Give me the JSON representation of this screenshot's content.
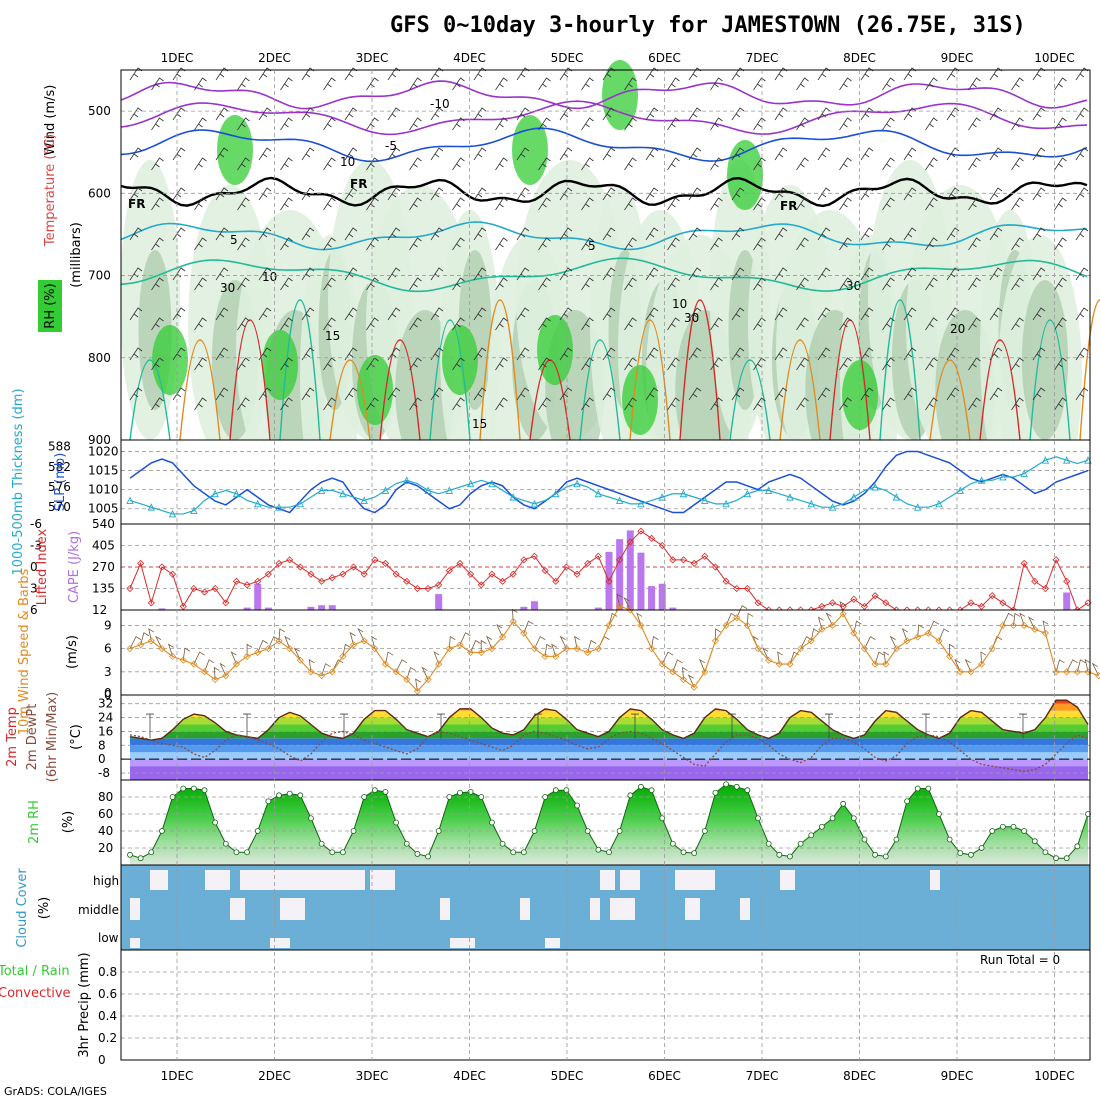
{
  "header": {
    "title": "GFS 0~10day 3-hourly for JAMESTOWN (26.75E, 31S)",
    "footer": "GrADS: COLA/IGES"
  },
  "colors": {
    "rh_green": "#33cc33",
    "rh_light": "#dff0df",
    "rh_mid": "#a9c9a9",
    "purple": "#9933cc",
    "blue": "#1a4fd6",
    "cyan": "#22aacc",
    "teal": "#22bb99",
    "orange": "#e08a20",
    "red": "#d62a2a",
    "cloud_blue": "#6baed6",
    "cloud_white": "#f4f2f7"
  },
  "chart_data": [
    {
      "id": "upper_air",
      "type": "heatmap",
      "xlabels_top": [
        "1DEC",
        "2DEC",
        "3DEC",
        "4DEC",
        "5DEC",
        "6DEC",
        "7DEC",
        "8DEC",
        "9DEC",
        "10DEC"
      ],
      "ylabel_right": "Wind (m/s)",
      "ylabel_temp": "Temperature (°C)",
      "ylabel_unit": "(millibars)",
      "ylabel_rh": "RH (%)",
      "yticks": [
        500,
        600,
        700,
        800,
        900
      ],
      "ylim": [
        450,
        900
      ],
      "contour_labels": [
        "-10",
        "-5",
        "FR",
        "FR",
        "FR",
        "5",
        "5",
        "10",
        "10",
        "15",
        "15",
        "20",
        "10",
        "30",
        "30",
        "30"
      ]
    },
    {
      "id": "slp_thickness",
      "type": "line",
      "ylabel_left": "1000-500mb Thickness (dm)",
      "ylabel_right": "SLP (mb)",
      "yticks_left": [
        570,
        576,
        582,
        588
      ],
      "yticks_right": [
        1005,
        1010,
        1015,
        1020
      ],
      "series": [
        {
          "name": "SLP (mb)",
          "values": [
            1013,
            1015,
            1017,
            1018,
            1017,
            1014,
            1011,
            1009,
            1007,
            1006,
            1008,
            1010,
            1008,
            1006,
            1005,
            1004,
            1007,
            1010,
            1012,
            1013,
            1012,
            1008,
            1005,
            1004,
            1006,
            1010,
            1012,
            1011,
            1009,
            1007,
            1005,
            1006,
            1009,
            1011,
            1012,
            1011,
            1008,
            1006,
            1005,
            1007,
            1009,
            1012,
            1013,
            1012,
            1011,
            1010,
            1009,
            1008,
            1007,
            1006,
            1005,
            1004,
            1004,
            1006,
            1008,
            1010,
            1012,
            1012,
            1011,
            1010,
            1012,
            1013,
            1014,
            1013,
            1011,
            1009,
            1007,
            1006,
            1007,
            1009,
            1012,
            1016,
            1019,
            1020,
            1020,
            1019,
            1018,
            1017,
            1015,
            1013,
            1012,
            1013,
            1014,
            1013,
            1011,
            1009,
            1010,
            1012,
            1013,
            1014,
            1015
          ]
        },
        {
          "name": "1000-500mb Thickness (dm)",
          "values": [
            572,
            571,
            570,
            569,
            568,
            568,
            569,
            572,
            574,
            575,
            574,
            572,
            571,
            570,
            570,
            570,
            571,
            573,
            575,
            575,
            574,
            573,
            572,
            573,
            575,
            577,
            578,
            577,
            575,
            574,
            575,
            576,
            577,
            578,
            577,
            575,
            573,
            572,
            571,
            572,
            574,
            576,
            577,
            576,
            574,
            573,
            572,
            571,
            571,
            572,
            573,
            574,
            574,
            573,
            572,
            571,
            571,
            572,
            574,
            575,
            575,
            574,
            573,
            572,
            571,
            570,
            570,
            571,
            573,
            575,
            576,
            575,
            573,
            571,
            570,
            570,
            571,
            573,
            575,
            577,
            578,
            578,
            579,
            579,
            580,
            582,
            584,
            585,
            584,
            583,
            584
          ]
        }
      ]
    },
    {
      "id": "cape_li",
      "type": "bar",
      "ylabel_left": "Lifted Index",
      "ylabel_right": "CAPE (J/kg)",
      "yticks_left": [
        "-6",
        "-3",
        "0",
        "3",
        "6"
      ],
      "yticks_right": [
        "540",
        "405",
        "270",
        "135",
        "12"
      ],
      "series": [
        {
          "name": "CAPE (J/kg)",
          "values": [
            0,
            0,
            0,
            10,
            0,
            0,
            0,
            0,
            0,
            0,
            0,
            15,
            165,
            15,
            0,
            0,
            0,
            20,
            30,
            30,
            0,
            0,
            0,
            0,
            0,
            0,
            0,
            0,
            0,
            100,
            0,
            0,
            0,
            0,
            0,
            0,
            0,
            20,
            55,
            0,
            0,
            0,
            0,
            0,
            15,
            365,
            445,
            500,
            360,
            150,
            165,
            15,
            0,
            0,
            0,
            0,
            0,
            0,
            0,
            0,
            0,
            0,
            0,
            0,
            0,
            0,
            0,
            0,
            0,
            0,
            0,
            0,
            0,
            0,
            0,
            0,
            0,
            0,
            0,
            0,
            0,
            0,
            0,
            0,
            0,
            0,
            0,
            0,
            110,
            0,
            0
          ]
        },
        {
          "name": "Lifted Index",
          "values": [
            3,
            -0.5,
            5,
            0,
            1,
            5.5,
            3,
            3.5,
            3,
            5,
            2,
            2.5,
            2,
            1,
            -0.5,
            -1,
            0,
            1,
            2,
            1.5,
            1,
            0,
            1,
            -1,
            -0.5,
            1,
            2,
            3,
            3,
            2.5,
            0.5,
            -0.5,
            1,
            2.5,
            1,
            2,
            1,
            -1,
            -1.5,
            0.5,
            2,
            0,
            1,
            -0.5,
            -1.5,
            2,
            -1,
            -3.5,
            -5,
            -4,
            -3,
            -1,
            -1,
            -0.5,
            -1.5,
            0,
            2,
            3,
            3,
            5,
            6,
            6,
            6,
            6,
            6,
            5.5,
            5,
            5.5,
            4.5,
            5.5,
            4,
            5,
            6,
            6,
            6,
            6,
            6,
            6,
            6,
            5,
            5.5,
            4,
            5,
            6,
            -0.5,
            2,
            3,
            -1,
            2,
            6,
            5
          ]
        }
      ]
    },
    {
      "id": "wind10m",
      "type": "line",
      "ylabel": "10m Wind Speed & Barbs",
      "yunit": "(m/s)",
      "yticks": [
        0,
        3,
        6,
        9
      ],
      "ylim": [
        0,
        11
      ],
      "series": [
        {
          "name": "10m Wind Speed",
          "values": [
            6,
            6.5,
            7,
            6,
            5,
            4.5,
            4,
            3,
            2,
            2.5,
            4,
            5,
            5.5,
            6,
            7,
            6,
            4.5,
            3,
            2.5,
            3,
            5,
            6.5,
            7,
            6,
            4,
            3,
            2,
            0.5,
            2,
            4,
            6,
            6.5,
            5.5,
            5.5,
            6,
            7.5,
            9.5,
            8,
            6,
            5,
            5,
            6,
            6,
            5.5,
            6,
            9,
            11.5,
            11,
            9,
            6,
            4,
            3,
            2,
            1,
            3,
            7,
            9,
            10,
            9,
            6,
            4.5,
            4,
            4,
            6,
            7,
            8.5,
            9,
            10.5,
            8,
            6,
            4,
            4,
            6,
            7,
            7.5,
            8,
            7,
            5,
            3,
            3,
            4,
            6,
            9,
            9,
            9,
            8.5,
            8,
            3,
            3,
            3,
            3,
            2.5
          ]
        }
      ]
    },
    {
      "id": "temp2m",
      "type": "area",
      "ylabel": "2m Temp 2m DewPt (6hr Min/Max)",
      "yunit": "(°C)",
      "yticks": [
        -8,
        0,
        8,
        16,
        24,
        32
      ],
      "ylim": [
        -12,
        37
      ],
      "series": [
        {
          "name": "2m Temp",
          "values": [
            13,
            12,
            11,
            12,
            17,
            23,
            26,
            25,
            21,
            16,
            14,
            13,
            12,
            17,
            24,
            27,
            25,
            20,
            15,
            13,
            12,
            15,
            23,
            28,
            28,
            23,
            17,
            15,
            13,
            16,
            24,
            29,
            29,
            24,
            18,
            15,
            14,
            17,
            25,
            29,
            28,
            23,
            17,
            15,
            13,
            16,
            24,
            29,
            28,
            23,
            17,
            14,
            12,
            15,
            24,
            29,
            28,
            23,
            17,
            14,
            12,
            15,
            24,
            28,
            27,
            22,
            17,
            14,
            12,
            14,
            22,
            28,
            27,
            22,
            17,
            14,
            12,
            15,
            24,
            28,
            27,
            22,
            17,
            16,
            15,
            17,
            24,
            34,
            34,
            30,
            20
          ]
        },
        {
          "name": "2m DewPt",
          "values": [
            14,
            13,
            11,
            9,
            8,
            7,
            3,
            1,
            5,
            11,
            14,
            13,
            11,
            9,
            6,
            2,
            -1,
            3,
            10,
            15,
            16,
            14,
            11,
            9,
            7,
            5,
            3,
            6,
            13,
            16,
            15,
            13,
            11,
            9,
            7,
            5,
            8,
            14,
            16,
            15,
            13,
            11,
            8,
            6,
            7,
            12,
            15,
            16,
            15,
            12,
            9,
            5,
            1,
            -3,
            -4,
            3,
            10,
            14,
            14,
            12,
            8,
            3,
            0,
            -2,
            1,
            8,
            12,
            12,
            10,
            6,
            1,
            -1,
            2,
            9,
            13,
            14,
            13,
            10,
            5,
            0,
            -3,
            -4,
            -5,
            -6,
            -7,
            -6,
            -3,
            3,
            9,
            14,
            12
          ]
        }
      ]
    },
    {
      "id": "rh2m",
      "type": "area",
      "ylabel": "2m RH",
      "yunit": "(%)",
      "yticks": [
        20,
        40,
        60,
        80
      ],
      "ylim": [
        0,
        100
      ],
      "series": [
        {
          "name": "2m RH",
          "values": [
            12,
            8,
            15,
            40,
            80,
            90,
            90,
            88,
            50,
            25,
            15,
            15,
            40,
            75,
            82,
            84,
            82,
            55,
            25,
            15,
            15,
            40,
            80,
            88,
            86,
            50,
            25,
            13,
            10,
            40,
            80,
            85,
            86,
            80,
            50,
            25,
            15,
            15,
            40,
            80,
            88,
            88,
            70,
            40,
            18,
            15,
            40,
            82,
            92,
            88,
            55,
            25,
            15,
            14,
            40,
            85,
            95,
            92,
            88,
            55,
            25,
            12,
            10,
            25,
            35,
            45,
            55,
            72,
            55,
            30,
            12,
            10,
            30,
            75,
            90,
            90,
            60,
            30,
            14,
            12,
            20,
            40,
            45,
            45,
            40,
            28,
            15,
            8,
            8,
            22,
            60
          ]
        }
      ]
    },
    {
      "id": "cloud",
      "type": "heatmap",
      "ylabel": "Cloud Cover",
      "yunit": "(%)",
      "levels": [
        "high",
        "middle",
        "low"
      ]
    },
    {
      "id": "precip",
      "type": "bar",
      "ylabel_left": "Total / Rain",
      "ylabel_conv": "Convective",
      "ylabel": "3hr Precip (mm)",
      "run_total": "Run Total = 0",
      "yticks": [
        "0",
        "0.2",
        "0.4",
        "0.6",
        "0.8"
      ],
      "ylim": [
        0,
        1
      ],
      "xlabels": [
        "1DEC",
        "2DEC",
        "3DEC",
        "4DEC",
        "5DEC",
        "6DEC",
        "7DEC",
        "8DEC",
        "9DEC",
        "10DEC"
      ],
      "values": []
    }
  ]
}
